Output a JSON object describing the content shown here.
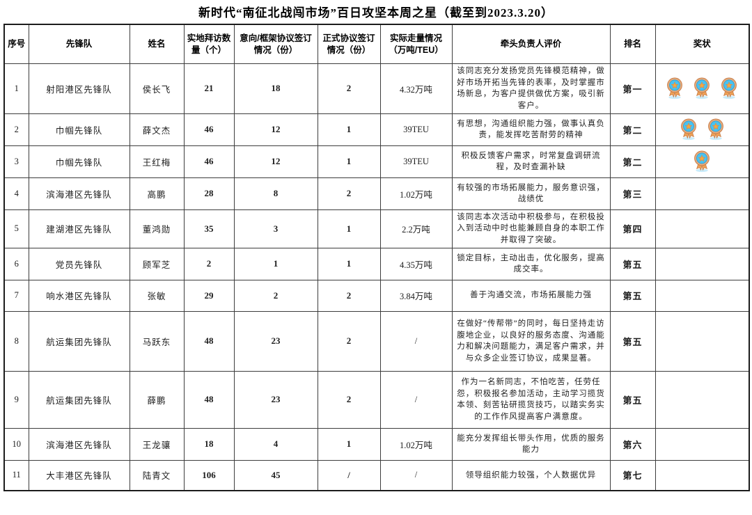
{
  "title": "新时代“南征北战闯市场”百日攻坚本周之星（截至到2023.3.20）",
  "columns": [
    {
      "label": "序号"
    },
    {
      "label": "先锋队"
    },
    {
      "label": "姓名"
    },
    {
      "label": "实地拜访数量（个）"
    },
    {
      "label": "意向/框架协议签订情况（份）"
    },
    {
      "label": "正式协议签订情况（份）"
    },
    {
      "label": "实际走量情况（万吨/TEU）"
    },
    {
      "label": "牵头负责人评价"
    },
    {
      "label": "排名"
    },
    {
      "label": "奖状"
    }
  ],
  "medal": {
    "name": "award-rosette-medal",
    "circle_color": "#49c3f1",
    "ring_color": "#e4ab7c",
    "star_color": "#f5a93f",
    "ribbon_color": "#f0a154",
    "shadow_color": "#c9ecfb"
  },
  "rows": [
    {
      "seq": "1",
      "team": "射阳港区先锋队",
      "name": "侯长飞",
      "visits": "21",
      "intent": "18",
      "formal": "2",
      "volume": "4.32万吨",
      "evaluation": "该同志充分发扬党员先锋模范精神，做好市场开拓当先锋的表率，及时掌握市场新息，为客户提供做优方案，吸引新客户。",
      "rank": "第一",
      "medals": 3
    },
    {
      "seq": "2",
      "team": "巾帼先锋队",
      "name": "薛文杰",
      "visits": "46",
      "intent": "12",
      "formal": "1",
      "volume": "39TEU",
      "evaluation": "有思想，沟通组织能力强，做事认真负责，能发挥吃苦耐劳的精神",
      "rank": "第二",
      "medals": 2
    },
    {
      "seq": "3",
      "team": "巾帼先锋队",
      "name": "王红梅",
      "visits": "46",
      "intent": "12",
      "formal": "1",
      "volume": "39TEU",
      "evaluation": "积极反馈客户需求，时常复盘调研流程，及时查漏补缺",
      "rank": "第二",
      "medals": 1
    },
    {
      "seq": "4",
      "team": "滨海港区先锋队",
      "name": "高鹏",
      "visits": "28",
      "intent": "8",
      "formal": "2",
      "volume": "1.02万吨",
      "evaluation": "有较强的市场拓展能力，服务意识强，战绩优",
      "rank": "第三",
      "medals": 0
    },
    {
      "seq": "5",
      "team": "建湖港区先锋队",
      "name": "董鸿勋",
      "visits": "35",
      "intent": "3",
      "formal": "1",
      "volume": "2.2万吨",
      "evaluation": "该同志本次活动中积极参与，在积极投入到活动中时也能兼顾自身的本职工作并取得了突破。",
      "rank": "第四",
      "medals": 0
    },
    {
      "seq": "6",
      "team": "党员先锋队",
      "name": "顾军芝",
      "visits": "2",
      "intent": "1",
      "formal": "1",
      "volume": "4.35万吨",
      "evaluation": "锁定目标，主动出击，优化服务，提高成交率。",
      "rank": "第五",
      "medals": 0
    },
    {
      "seq": "7",
      "team": "响水港区先锋队",
      "name": "张敏",
      "visits": "29",
      "intent": "2",
      "formal": "2",
      "volume": "3.84万吨",
      "evaluation": "善于沟通交流，市场拓展能力强",
      "rank": "第五",
      "medals": 0
    },
    {
      "seq": "8",
      "team": "航运集团先锋队",
      "name": "马跃东",
      "visits": "48",
      "intent": "23",
      "formal": "2",
      "volume": "/",
      "evaluation": "在做好“传帮带”的同时，每日坚持走访腹地企业，以良好的服务态度、沟通能力和解决问题能力，满足客户需求，并与众多企业签订协议，成果显著。",
      "rank": "第五",
      "medals": 0
    },
    {
      "seq": "9",
      "team": "航运集团先锋队",
      "name": "薛鹏",
      "visits": "48",
      "intent": "23",
      "formal": "2",
      "volume": "/",
      "evaluation": "作为一名新同志，不怕吃苦，任劳任怨，积极报名参加活动，主动学习揽货本领、刻苦钻研揽货技巧，以踏实务实的工作作风提高客户满意度。",
      "rank": "第五",
      "medals": 0
    },
    {
      "seq": "10",
      "team": "滨海港区先锋队",
      "name": "王龙骧",
      "visits": "18",
      "intent": "4",
      "formal": "1",
      "volume": "1.02万吨",
      "evaluation": "能充分发挥组长带头作用，优质的服务能力",
      "rank": "第六",
      "medals": 0
    },
    {
      "seq": "11",
      "team": "大丰港区先锋队",
      "name": "陆青文",
      "visits": "106",
      "intent": "45",
      "formal": "/",
      "volume": "/",
      "evaluation": "领导组织能力较强，个人数据优异",
      "rank": "第七",
      "medals": 0
    }
  ]
}
